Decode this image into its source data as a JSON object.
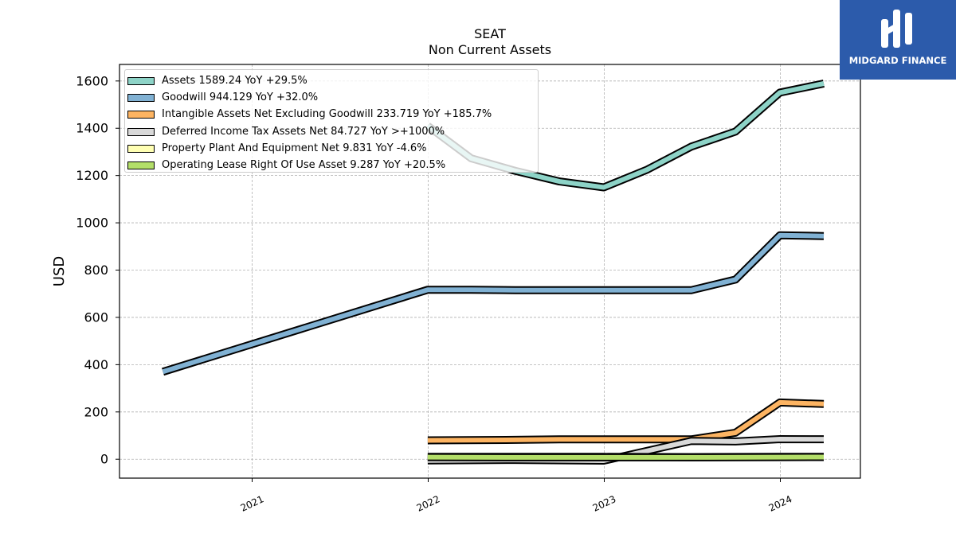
{
  "chart_data": {
    "type": "line",
    "title": "SEAT",
    "subtitle": "Non Current  Assets",
    "xlabel": "",
    "ylabel": "USD",
    "xlim": [
      "2020-04-01",
      "2024-06-15"
    ],
    "ylim": [
      -80,
      1670
    ],
    "x_ticks": [
      "2021",
      "2022",
      "2023",
      "2024"
    ],
    "y_ticks": [
      0,
      200,
      400,
      600,
      800,
      1000,
      1200,
      1400,
      1600
    ],
    "grid": true,
    "legend_position": "top-left",
    "series": [
      {
        "name": "Assets",
        "legend": "Assets  1589.24 YoY +29.5%",
        "color": "#8dd3c7",
        "points": [
          [
            "2021-12-31",
            1410
          ],
          [
            "2022-03-31",
            1273
          ],
          [
            "2022-06-30",
            1220
          ],
          [
            "2022-09-30",
            1175
          ],
          [
            "2022-12-31",
            1150
          ],
          [
            "2023-03-31",
            1225
          ],
          [
            "2023-06-30",
            1322
          ],
          [
            "2023-09-30",
            1386
          ],
          [
            "2023-12-31",
            1551
          ],
          [
            "2024-03-31",
            1589.24
          ]
        ]
      },
      {
        "name": "Goodwill",
        "legend": "Goodwill  944.129 YoY +32.0%",
        "color": "#80b1d3",
        "points": [
          [
            "2020-06-30",
            370
          ],
          [
            "2021-12-31",
            717
          ],
          [
            "2022-03-31",
            717
          ],
          [
            "2022-06-30",
            715
          ],
          [
            "2022-09-30",
            715
          ],
          [
            "2022-12-31",
            715
          ],
          [
            "2023-03-31",
            715
          ],
          [
            "2023-06-30",
            715
          ],
          [
            "2023-09-30",
            760
          ],
          [
            "2023-12-31",
            947
          ],
          [
            "2024-03-31",
            944.129
          ]
        ]
      },
      {
        "name": "Intangible Assets Net Excluding Goodwill",
        "legend": "Intangible Assets Net Excluding Goodwill  233.719 YoY +185.7%",
        "color": "#fdb462",
        "points": [
          [
            "2021-12-31",
            80
          ],
          [
            "2022-06-30",
            82
          ],
          [
            "2022-09-30",
            84
          ],
          [
            "2022-12-31",
            84
          ],
          [
            "2023-06-30",
            84
          ],
          [
            "2023-09-30",
            112
          ],
          [
            "2023-12-31",
            240
          ],
          [
            "2024-03-31",
            233.719
          ]
        ]
      },
      {
        "name": "Deferred Income Tax Assets Net",
        "legend": "Deferred Income Tax Assets Net  84.727 YoY >+1000%",
        "color": "#d9d9d9",
        "points": [
          [
            "2021-12-31",
            -5
          ],
          [
            "2022-06-30",
            -3
          ],
          [
            "2022-12-31",
            -6
          ],
          [
            "2023-06-30",
            77
          ],
          [
            "2023-09-30",
            75
          ],
          [
            "2023-12-31",
            85
          ],
          [
            "2024-03-31",
            84.727
          ]
        ]
      },
      {
        "name": "Property Plant And Equipment Net",
        "legend": "Property Plant And Equipment Net  9.831 YoY -4.6%",
        "color": "#ffffb3",
        "points": [
          [
            "2021-12-31",
            10
          ],
          [
            "2022-06-30",
            10
          ],
          [
            "2022-12-31",
            10
          ],
          [
            "2023-06-30",
            9
          ],
          [
            "2023-12-31",
            10
          ],
          [
            "2024-03-31",
            9.831
          ]
        ]
      },
      {
        "name": "Operating Lease Right Of Use Asset",
        "legend": "Operating Lease Right Of Use Asset  9.287 YoY +20.5%",
        "color": "#b3de69",
        "points": [
          [
            "2021-12-31",
            9
          ],
          [
            "2022-06-30",
            8
          ],
          [
            "2022-12-31",
            8
          ],
          [
            "2023-06-30",
            8
          ],
          [
            "2023-12-31",
            9
          ],
          [
            "2024-03-31",
            9.287
          ]
        ]
      }
    ]
  },
  "logo": {
    "text": "MIDGARD FINANCE",
    "color": "#2c5bab"
  }
}
